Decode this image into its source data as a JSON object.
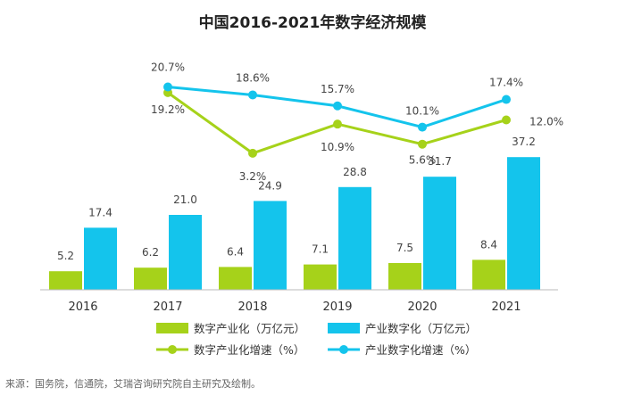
{
  "chart_data": {
    "type": "bar",
    "title": "中国2016-2021年数字经济规模",
    "categories": [
      "2016",
      "2017",
      "2018",
      "2019",
      "2020",
      "2021"
    ],
    "series": [
      {
        "name": "数字产业化（万亿元）",
        "kind": "bar",
        "color": "#a6d21a",
        "values": [
          5.2,
          6.2,
          6.4,
          7.1,
          7.5,
          8.4
        ]
      },
      {
        "name": "产业数字化（万亿元）",
        "kind": "bar",
        "color": "#14c4ec",
        "values": [
          17.4,
          21.0,
          24.9,
          28.8,
          31.7,
          37.2
        ]
      },
      {
        "name": "数字产业化增速（%）",
        "kind": "line",
        "color": "#a6d21a",
        "values": [
          19.2,
          3.2,
          10.9,
          5.6,
          12.0
        ],
        "x": [
          "2017",
          "2018",
          "2019",
          "2020",
          "2021"
        ]
      },
      {
        "name": "产业数字化增速（%）",
        "kind": "line",
        "color": "#14c4ec",
        "values": [
          20.7,
          18.6,
          15.7,
          10.1,
          17.4
        ],
        "x": [
          "2017",
          "2018",
          "2019",
          "2020",
          "2021"
        ]
      }
    ],
    "bar_labels": [
      [
        "5.2",
        "6.2",
        "6.4",
        "7.1",
        "7.5",
        "8.4"
      ],
      [
        "17.4",
        "21.0",
        "24.9",
        "28.8",
        "31.7",
        "37.2"
      ]
    ],
    "line_labels": [
      [
        "19.2%",
        "3.2%",
        "10.9%",
        "5.6%",
        "12.0%"
      ],
      [
        "20.7%",
        "18.6%",
        "15.7%",
        "10.1%",
        "17.4%"
      ]
    ],
    "grid": false,
    "legend_position": "bottom"
  },
  "source": "来源：国务院，信通院，艾瑞咨询研究院自主研究及绘制。"
}
